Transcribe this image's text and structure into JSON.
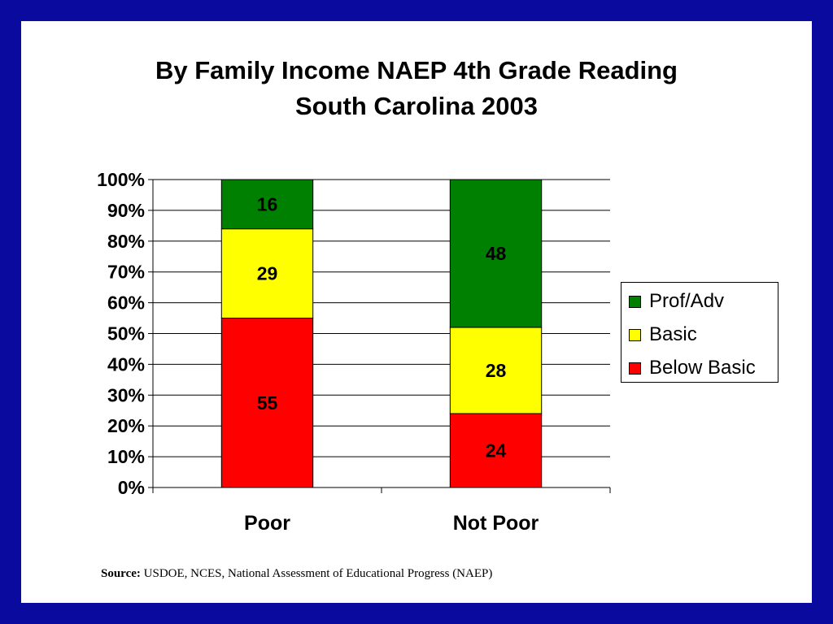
{
  "title": {
    "line1": "By Family Income NAEP 4th Grade Reading",
    "line2": "South Carolina 2003"
  },
  "source": {
    "label": "Source:",
    "text": "USDOE, NCES, National Assessment of Educational Progress (NAEP)"
  },
  "colors": {
    "below_basic": "#ff0000",
    "basic": "#ffff00",
    "prof_adv": "#008000",
    "frame": "#0a0a9e"
  },
  "chart_data": {
    "type": "bar",
    "stacked": true,
    "categories": [
      "Poor",
      "Not Poor"
    ],
    "series": [
      {
        "name": "Below Basic",
        "values": [
          55,
          24
        ],
        "color": "#ff0000"
      },
      {
        "name": "Basic",
        "values": [
          29,
          28
        ],
        "color": "#ffff00"
      },
      {
        "name": "Prof/Adv",
        "values": [
          16,
          48
        ],
        "color": "#008000"
      }
    ],
    "data_labels": true,
    "ylim": [
      0,
      100
    ],
    "yticks": [
      "0%",
      "10%",
      "20%",
      "30%",
      "40%",
      "50%",
      "60%",
      "70%",
      "80%",
      "90%",
      "100%"
    ],
    "grid": true,
    "legend": {
      "placement": "right",
      "entries": [
        "Prof/Adv",
        "Basic",
        "Below Basic"
      ]
    }
  }
}
